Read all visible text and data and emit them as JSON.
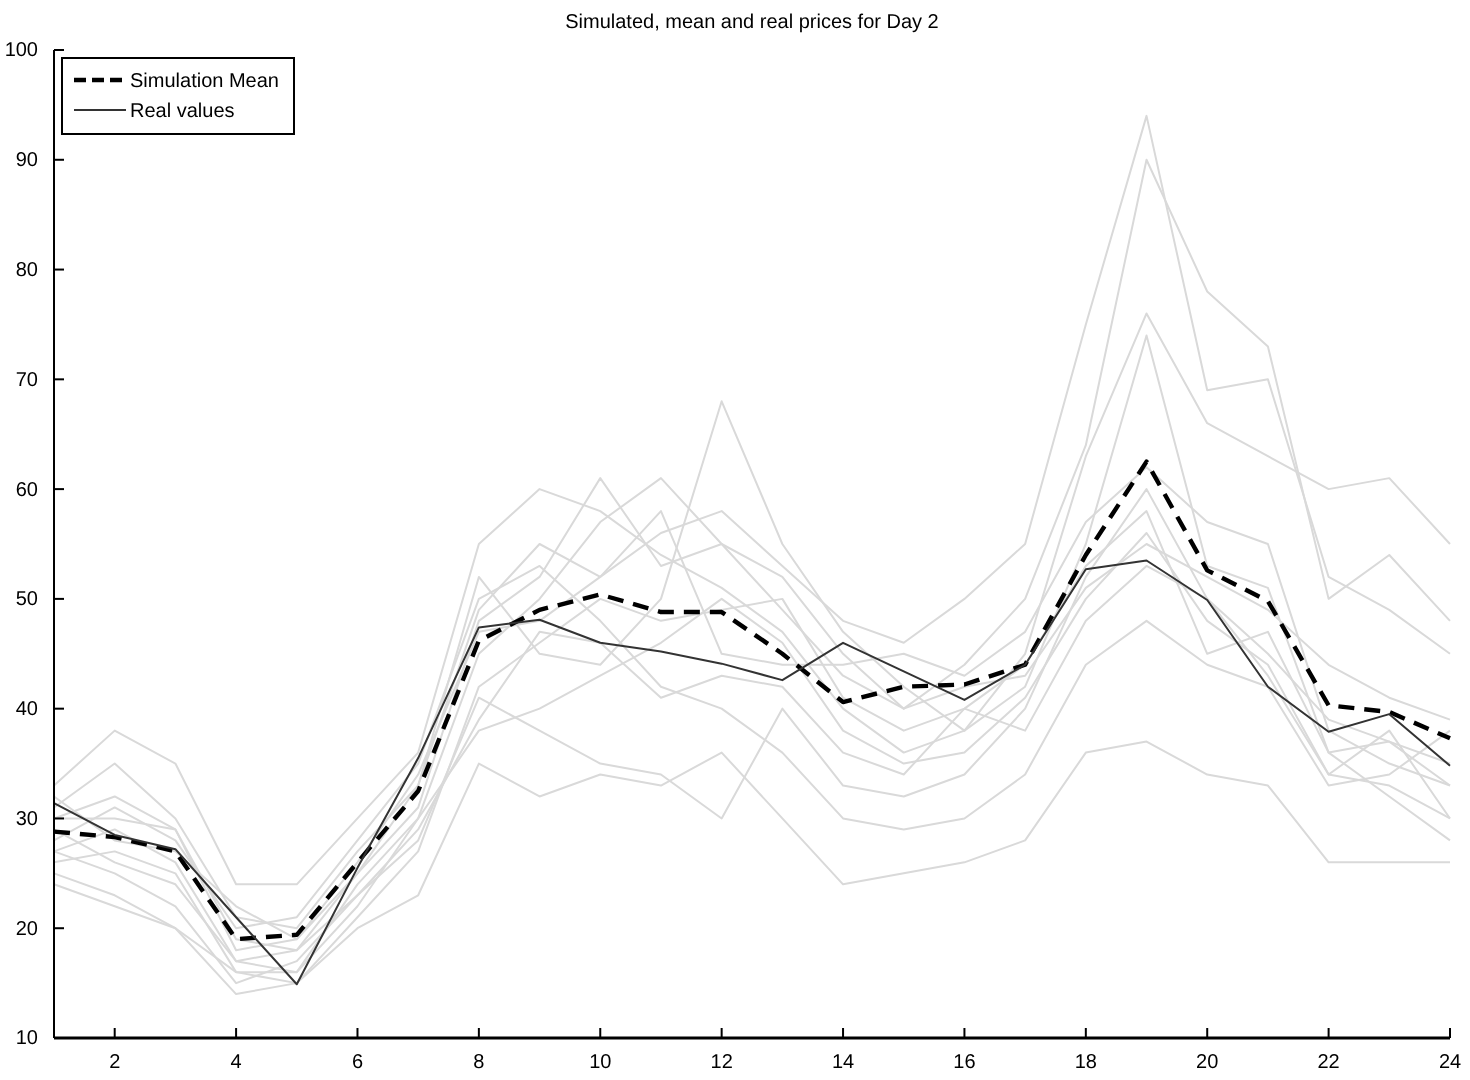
{
  "chart_data": {
    "type": "line",
    "title": "Simulated, mean and real prices for Day 2",
    "x": [
      1,
      2,
      3,
      4,
      5,
      6,
      7,
      8,
      9,
      10,
      11,
      12,
      13,
      14,
      15,
      16,
      17,
      18,
      19,
      20,
      21,
      22,
      23,
      24
    ],
    "xlim": [
      1,
      24
    ],
    "xticks": [
      2,
      4,
      6,
      8,
      10,
      12,
      14,
      16,
      18,
      20,
      22,
      24
    ],
    "ylim": [
      10,
      100
    ],
    "yticks": [
      10,
      20,
      30,
      40,
      50,
      60,
      70,
      80,
      90,
      100
    ],
    "grid": false,
    "legend": "top left",
    "series": [
      {
        "color": "#d9d9d9",
        "values": [
          30,
          32,
          29,
          19,
          18,
          25,
          33,
          49,
          55,
          52,
          56,
          58,
          53,
          48,
          46,
          50,
          55,
          75,
          94,
          69,
          70,
          52,
          49,
          45
        ]
      },
      {
        "color": "#d9d9d9",
        "values": [
          27,
          29,
          26,
          17,
          16,
          22,
          30,
          45,
          50,
          57,
          61,
          55,
          52,
          45,
          40,
          44,
          50,
          64,
          90,
          78,
          73,
          50,
          54,
          48
        ]
      },
      {
        "color": "#d9d9d9",
        "values": [
          33,
          38,
          35,
          24,
          24,
          30,
          36,
          55,
          60,
          58,
          54,
          51,
          47,
          40,
          36,
          38,
          45,
          63,
          76,
          66,
          63,
          60,
          61,
          55
        ]
      },
      {
        "color": "#d9d9d9",
        "values": [
          25,
          23,
          20,
          14,
          15,
          20,
          23,
          35,
          32,
          34,
          33,
          36,
          30,
          24,
          25,
          26,
          28,
          36,
          37,
          34,
          33,
          26,
          26,
          26
        ]
      },
      {
        "color": "#d9d9d9",
        "values": [
          29,
          26,
          24,
          17,
          18,
          23,
          28,
          41,
          38,
          35,
          34,
          30,
          40,
          33,
          32,
          34,
          40,
          52,
          60,
          50,
          43,
          34,
          38,
          30
        ]
      },
      {
        "color": "#d9d9d9",
        "values": [
          31,
          35,
          30,
          21,
          20,
          27,
          33,
          52,
          45,
          44,
          50,
          68,
          55,
          47,
          42,
          38,
          42,
          55,
          74,
          53,
          51,
          36,
          37,
          35
        ]
      },
      {
        "color": "#d9d9d9",
        "values": [
          26,
          27,
          25,
          16,
          16,
          24,
          30,
          38,
          40,
          43,
          46,
          50,
          46,
          38,
          35,
          36,
          41,
          50,
          56,
          48,
          44,
          34,
          33,
          30
        ]
      },
      {
        "color": "#d9d9d9",
        "values": [
          28,
          31,
          28,
          20,
          21,
          28,
          35,
          50,
          53,
          48,
          42,
          40,
          36,
          30,
          29,
          30,
          34,
          44,
          48,
          44,
          42,
          33,
          34,
          38
        ]
      },
      {
        "color": "#d9d9d9",
        "values": [
          32,
          28,
          27,
          22,
          19,
          26,
          34,
          47,
          48,
          52,
          58,
          45,
          44,
          44,
          45,
          43,
          47,
          57,
          62,
          57,
          55,
          38,
          35,
          33
        ]
      },
      {
        "color": "#d9d9d9",
        "values": [
          24,
          22,
          20,
          16,
          15,
          21,
          27,
          42,
          46,
          50,
          48,
          49,
          50,
          41,
          38,
          40,
          44,
          53,
          58,
          45,
          47,
          36,
          32,
          28
        ]
      },
      {
        "color": "#d9d9d9",
        "values": [
          30,
          30,
          29,
          18,
          19,
          25,
          31,
          48,
          52,
          61,
          53,
          55,
          49,
          43,
          40,
          42,
          43,
          51,
          55,
          52,
          49,
          44,
          41,
          39
        ]
      },
      {
        "color": "#d9d9d9",
        "values": [
          27,
          25,
          22,
          15,
          17,
          23,
          29,
          39,
          47,
          46,
          41,
          43,
          42,
          36,
          34,
          40,
          38,
          48,
          53,
          50,
          45,
          39,
          37,
          33
        ]
      },
      {
        "name": "Simulation Mean",
        "color": "#000000",
        "line_style": "dashed",
        "values": [
          28.8,
          28.3,
          27,
          19,
          19.4,
          26,
          32.5,
          46.2,
          49,
          50.4,
          48.8,
          48.8,
          45,
          40.6,
          42,
          42.2,
          44,
          54,
          62.5,
          52.6,
          49.8,
          40.3,
          39.7,
          37.3
        ]
      },
      {
        "name": "Real values",
        "color": "#333333",
        "line_style": "solid",
        "values": [
          31.4,
          28.5,
          27.2,
          21,
          14.9,
          25.5,
          35.5,
          47.4,
          48.1,
          46,
          45.2,
          44.1,
          42.6,
          46,
          43.4,
          40.8,
          44,
          52.7,
          53.5,
          49.9,
          42,
          37.9,
          39.5,
          34.8
        ]
      }
    ]
  }
}
